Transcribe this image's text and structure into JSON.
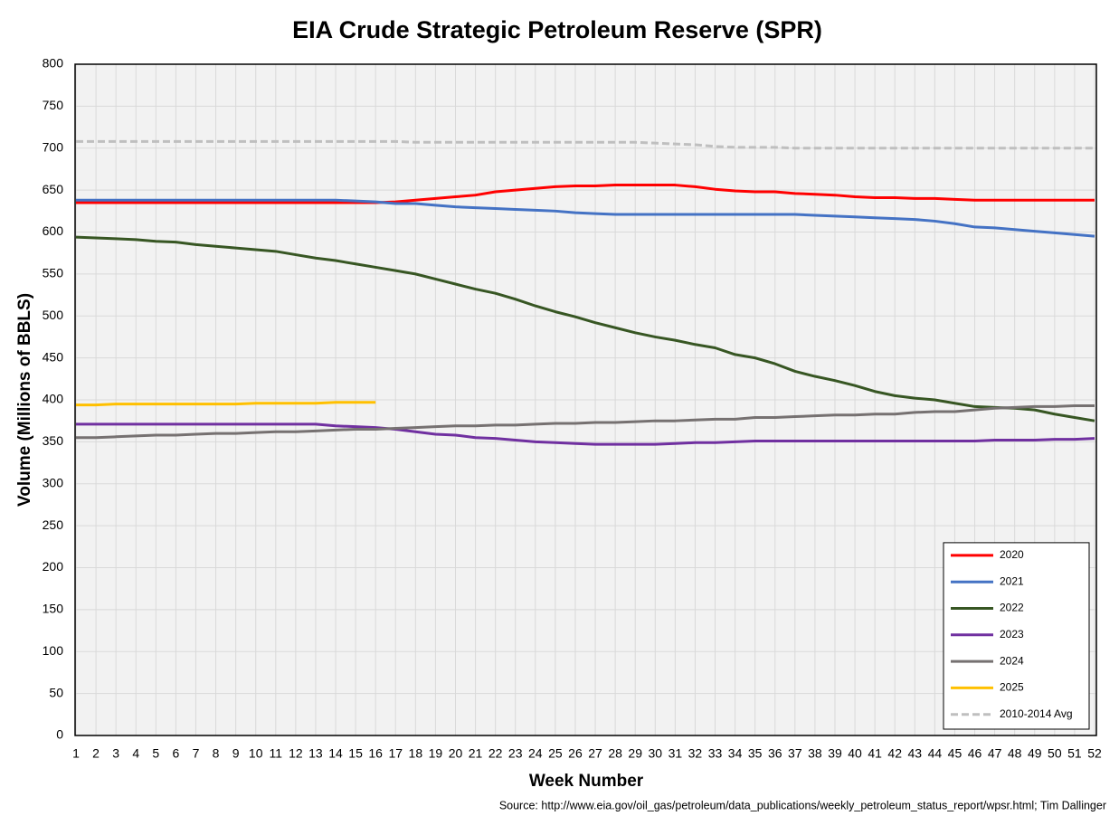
{
  "chart_data": {
    "type": "line",
    "title": "EIA Crude Strategic Petroleum Reserve (SPR)",
    "xlabel": "Week Number",
    "ylabel": "Volume (Millions of BBLS)",
    "source": "Source: http://www.eia.gov/oil_gas/petroleum/data_publications/weekly_petroleum_status_report/wpsr.html; Tim Dallinger",
    "x": [
      1,
      2,
      3,
      4,
      5,
      6,
      7,
      8,
      9,
      10,
      11,
      12,
      13,
      14,
      15,
      16,
      17,
      18,
      19,
      20,
      21,
      22,
      23,
      24,
      25,
      26,
      27,
      28,
      29,
      30,
      31,
      32,
      33,
      34,
      35,
      36,
      37,
      38,
      39,
      40,
      41,
      42,
      43,
      44,
      45,
      46,
      47,
      48,
      49,
      50,
      51,
      52
    ],
    "xlim": [
      1,
      52
    ],
    "xticks": [
      1,
      2,
      3,
      4,
      5,
      6,
      7,
      8,
      9,
      10,
      11,
      12,
      13,
      14,
      15,
      16,
      17,
      18,
      19,
      20,
      21,
      22,
      23,
      24,
      25,
      26,
      27,
      28,
      29,
      30,
      31,
      32,
      33,
      34,
      35,
      36,
      37,
      38,
      39,
      40,
      41,
      42,
      43,
      44,
      45,
      46,
      47,
      48,
      49,
      50,
      51,
      52
    ],
    "ylim": [
      0,
      800
    ],
    "yticks": [
      0,
      50,
      100,
      150,
      200,
      250,
      300,
      350,
      400,
      450,
      500,
      550,
      600,
      650,
      700,
      750,
      800
    ],
    "grid": true,
    "legend": "lower right",
    "series": [
      {
        "name": "2020",
        "color": "#ff0000",
        "values": [
          635,
          635,
          635,
          635,
          635,
          635,
          635,
          635,
          635,
          635,
          635,
          635,
          635,
          635,
          635,
          635,
          636,
          638,
          640,
          642,
          644,
          648,
          650,
          652,
          654,
          655,
          655,
          656,
          656,
          656,
          656,
          654,
          651,
          649,
          648,
          648,
          646,
          645,
          644,
          642,
          641,
          641,
          640,
          640,
          639,
          638,
          638,
          638,
          638,
          638,
          638,
          638
        ]
      },
      {
        "name": "2021",
        "color": "#4472c4",
        "values": [
          638,
          638,
          638,
          638,
          638,
          638,
          638,
          638,
          638,
          638,
          638,
          638,
          638,
          638,
          637,
          636,
          634,
          634,
          632,
          630,
          629,
          628,
          627,
          626,
          625,
          623,
          622,
          621,
          621,
          621,
          621,
          621,
          621,
          621,
          621,
          621,
          621,
          620,
          619,
          618,
          617,
          616,
          615,
          613,
          610,
          606,
          605,
          603,
          601,
          599,
          597,
          595
        ]
      },
      {
        "name": "2022",
        "color": "#375623",
        "values": [
          594,
          593,
          592,
          591,
          589,
          588,
          585,
          583,
          581,
          579,
          577,
          573,
          569,
          566,
          562,
          558,
          554,
          550,
          544,
          538,
          532,
          527,
          520,
          512,
          505,
          499,
          492,
          486,
          480,
          475,
          471,
          466,
          462,
          454,
          450,
          443,
          434,
          428,
          423,
          417,
          410,
          405,
          402,
          400,
          396,
          392,
          391,
          390,
          388,
          383,
          379,
          375
        ]
      },
      {
        "name": "2023",
        "color": "#7030a0",
        "values": [
          371,
          371,
          371,
          371,
          371,
          371,
          371,
          371,
          371,
          371,
          371,
          371,
          371,
          369,
          368,
          367,
          365,
          362,
          359,
          358,
          355,
          354,
          352,
          350,
          349,
          348,
          347,
          347,
          347,
          347,
          348,
          349,
          349,
          350,
          351,
          351,
          351,
          351,
          351,
          351,
          351,
          351,
          351,
          351,
          351,
          351,
          352,
          352,
          352,
          353,
          353,
          354
        ]
      },
      {
        "name": "2024",
        "color": "#767171",
        "values": [
          355,
          355,
          356,
          357,
          358,
          358,
          359,
          360,
          360,
          361,
          362,
          362,
          363,
          364,
          365,
          365,
          366,
          367,
          368,
          369,
          369,
          370,
          370,
          371,
          372,
          372,
          373,
          373,
          374,
          375,
          375,
          376,
          377,
          377,
          379,
          379,
          380,
          381,
          382,
          382,
          383,
          383,
          385,
          386,
          386,
          388,
          390,
          391,
          392,
          392,
          393,
          393
        ]
      },
      {
        "name": "2025",
        "color": "#ffc000",
        "values": [
          394,
          394,
          395,
          395,
          395,
          395,
          395,
          395,
          395,
          396,
          396,
          396,
          396,
          397,
          397,
          397,
          null,
          null,
          null,
          null,
          null,
          null,
          null,
          null,
          null,
          null,
          null,
          null,
          null,
          null,
          null,
          null,
          null,
          null,
          null,
          null,
          null,
          null,
          null,
          null,
          null,
          null,
          null,
          null,
          null,
          null,
          null,
          null,
          null,
          null,
          null,
          null
        ]
      },
      {
        "name": "2010-2014 Avg",
        "color": "#bfbfbf",
        "dash": true,
        "values": [
          708,
          708,
          708,
          708,
          708,
          708,
          708,
          708,
          708,
          708,
          708,
          708,
          708,
          708,
          708,
          708,
          708,
          707,
          707,
          707,
          707,
          707,
          707,
          707,
          707,
          707,
          707,
          707,
          707,
          706,
          705,
          704,
          702,
          701,
          701,
          701,
          700,
          700,
          700,
          700,
          700,
          700,
          700,
          700,
          700,
          700,
          700,
          700,
          700,
          700,
          700,
          700
        ]
      }
    ]
  }
}
